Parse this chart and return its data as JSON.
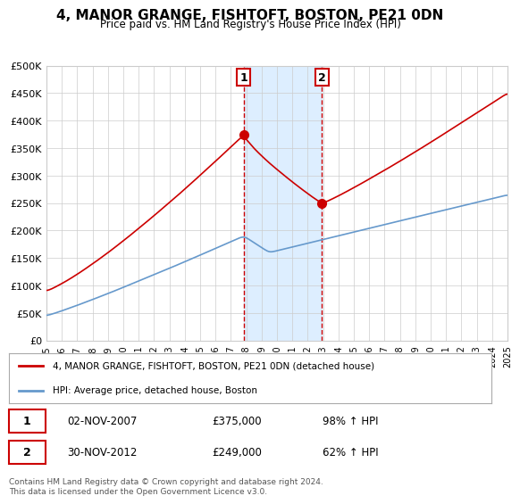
{
  "title": "4, MANOR GRANGE, FISHTOFT, BOSTON, PE21 0DN",
  "subtitle": "Price paid vs. HM Land Registry's House Price Index (HPI)",
  "legend_line1": "4, MANOR GRANGE, FISHTOFT, BOSTON, PE21 0DN (detached house)",
  "legend_line2": "HPI: Average price, detached house, Boston",
  "transaction1_label": "1",
  "transaction1_date": "02-NOV-2007",
  "transaction1_price": "£375,000",
  "transaction1_hpi": "98% ↑ HPI",
  "transaction2_label": "2",
  "transaction2_date": "30-NOV-2012",
  "transaction2_price": "£249,000",
  "transaction2_hpi": "62% ↑ HPI",
  "footnote": "Contains HM Land Registry data © Crown copyright and database right 2024.\nThis data is licensed under the Open Government Licence v3.0.",
  "red_color": "#cc0000",
  "blue_color": "#6699cc",
  "highlight_color": "#ddeeff",
  "vline_color": "#cc0000",
  "ylim": [
    0,
    500000
  ],
  "yticks": [
    0,
    50000,
    100000,
    150000,
    200000,
    250000,
    300000,
    350000,
    400000,
    450000,
    500000
  ],
  "year_start": 1995,
  "year_end": 2025,
  "transaction1_year": 2007.84,
  "transaction2_year": 2012.92,
  "transaction1_value": 375000,
  "transaction2_value": 249000,
  "background_color": "#ffffff"
}
